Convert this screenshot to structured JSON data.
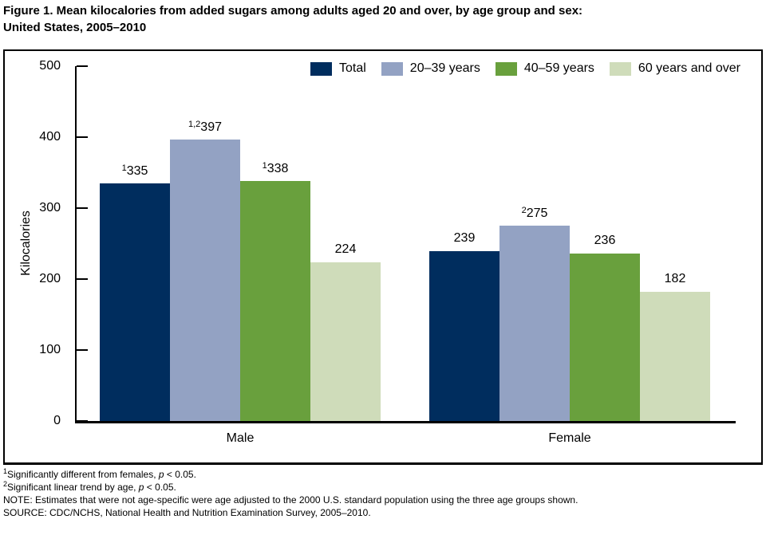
{
  "figure": {
    "title_line1": "Figure 1. Mean kilocalories from added sugars among adults aged 20 and over, by age group and sex:",
    "title_line2": "United States, 2005–2010"
  },
  "chart_data": {
    "type": "bar",
    "title": "Figure 1. Mean kilocalories from added sugars among adults aged 20 and over, by age group and sex: United States, 2005–2010",
    "categories": [
      "Male",
      "Female"
    ],
    "series": [
      {
        "name": "Total",
        "color": "#002d5e",
        "values": [
          335,
          239
        ],
        "label_sups": [
          "1",
          ""
        ]
      },
      {
        "name": "20–39 years",
        "color": "#93a2c3",
        "values": [
          397,
          275
        ],
        "label_sups": [
          "1,2",
          "2"
        ]
      },
      {
        "name": "40–59 years",
        "color": "#69a03d",
        "values": [
          338,
          236
        ],
        "label_sups": [
          "1",
          ""
        ]
      },
      {
        "name": "60 years and over",
        "color": "#cfdcba",
        "values": [
          224,
          182
        ],
        "label_sups": [
          "",
          ""
        ]
      }
    ],
    "xlabel": "",
    "ylabel": "Kilocalories",
    "ylim": [
      0,
      500
    ],
    "yticks": [
      0,
      100,
      200,
      300,
      400,
      500
    ],
    "grid": false,
    "legend_position": "top-right"
  },
  "footnotes": [
    {
      "sup": "1",
      "pre": "Significantly different from females, ",
      "italic": "p",
      "post": " < 0.05."
    },
    {
      "sup": "2",
      "pre": "Significant linear trend by age, ",
      "italic": "p",
      "post": " < 0.05."
    },
    {
      "sup": "",
      "pre": "NOTE: Estimates that were not age-specific were age adjusted to the 2000 U.S. standard population using the three age groups shown.",
      "italic": "",
      "post": ""
    },
    {
      "sup": "",
      "pre": "SOURCE: CDC/NCHS, National Health and Nutrition Examination Survey, 2005–2010.",
      "italic": "",
      "post": ""
    }
  ]
}
